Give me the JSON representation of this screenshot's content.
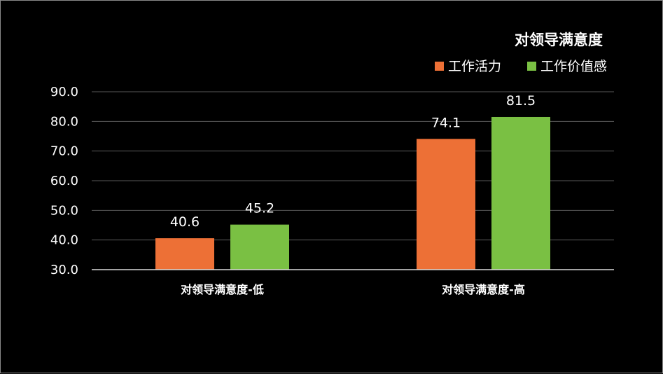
{
  "chart_data": {
    "type": "bar",
    "title": "对领导满意度",
    "categories": [
      "对领导满意度-低",
      "对领导满意度-高"
    ],
    "series": [
      {
        "name": "工作活力",
        "values": [
          40.6,
          74.1
        ],
        "color": "#ED7036"
      },
      {
        "name": "工作价值感",
        "values": [
          45.2,
          81.5
        ],
        "color": "#7AC043"
      }
    ],
    "ylim": [
      30,
      90
    ],
    "yticks": [
      "30.0",
      "40.0",
      "50.0",
      "60.0",
      "70.0",
      "80.0",
      "90.0"
    ],
    "xlabel": "",
    "ylabel": "",
    "grid": true,
    "legend_position": "top-right",
    "colors": {
      "background": "#000000",
      "text": "#ffffff",
      "grid": "#595959",
      "axis": "#d9d9d9"
    }
  }
}
